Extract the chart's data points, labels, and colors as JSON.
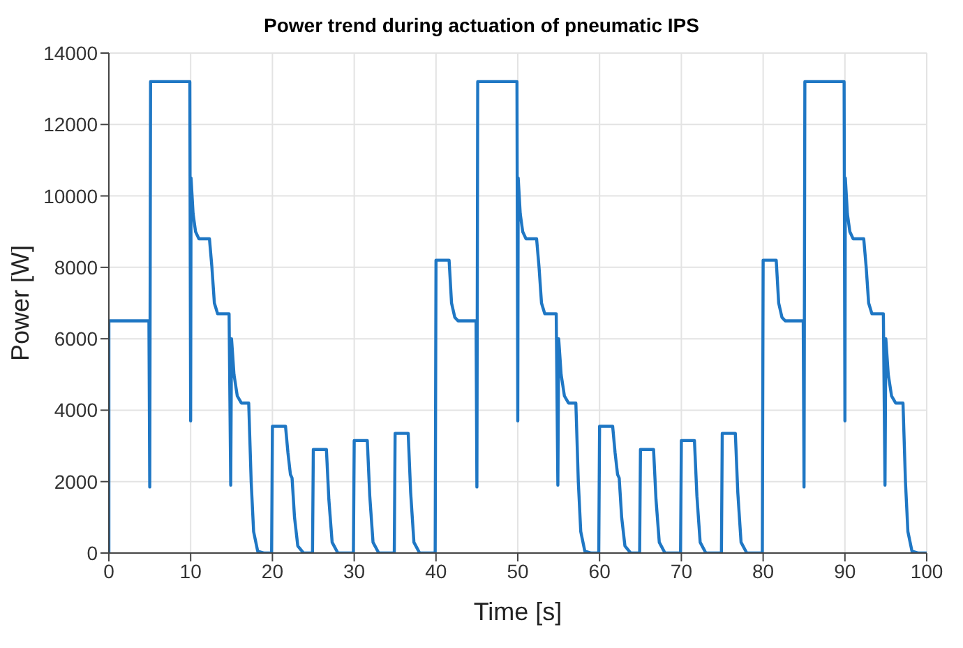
{
  "chart_data": {
    "type": "line",
    "title": "Power trend during actuation of pneumatic IPS",
    "xlabel": "Time [s]",
    "ylabel": "Power [W]",
    "xlim": [
      0,
      100
    ],
    "xticks": [
      0,
      10,
      20,
      30,
      40,
      50,
      60,
      70,
      80,
      90,
      100
    ],
    "ylim": [
      0,
      14000
    ],
    "yticks": [
      0,
      2000,
      4000,
      6000,
      8000,
      10000,
      12000,
      14000
    ],
    "grid": true,
    "marker": "none",
    "line_style": "solid",
    "series": [
      {
        "color": "#1f77c4",
        "x": [
          0,
          0,
          4.9,
          5,
          5.1,
          9.9,
          10,
          10.05,
          10.3,
          10.6,
          11,
          12.3,
          12.6,
          12.9,
          13.3,
          14.7,
          14.9,
          15,
          15.3,
          15.7,
          16.2,
          17.1,
          17.4,
          17.7,
          18.2,
          19,
          19.9,
          20,
          21.6,
          21.9,
          22.2,
          22.4,
          22.7,
          23.1,
          23.8,
          24.9,
          25,
          26.6,
          26.9,
          27.3,
          28,
          29.9,
          30,
          31.6,
          31.9,
          32.3,
          33,
          34.9,
          35,
          36.6,
          36.9,
          37.3,
          38,
          39.9,
          40,
          41.6,
          41.9,
          42.3,
          42.7,
          44.9,
          45,
          45.1,
          49.9,
          50,
          50.05,
          50.3,
          50.6,
          51,
          52.3,
          52.6,
          52.9,
          53.3,
          54.7,
          54.9,
          55,
          55.3,
          55.7,
          56.2,
          57.1,
          57.4,
          57.7,
          58.2,
          59,
          59.9,
          60,
          61.6,
          61.9,
          62.2,
          62.4,
          62.7,
          63.1,
          63.8,
          64.9,
          65,
          66.6,
          66.9,
          67.3,
          68,
          69.9,
          70,
          71.6,
          71.9,
          72.3,
          73,
          74.9,
          75,
          76.6,
          76.9,
          77.3,
          78,
          79.9,
          80,
          81.6,
          81.9,
          82.3,
          82.7,
          84.9,
          85,
          85.1,
          89.9,
          90,
          90.05,
          90.3,
          90.6,
          91,
          92.3,
          92.6,
          92.9,
          93.3,
          94.7,
          94.9,
          95,
          95.3,
          95.7,
          96.2,
          97.1,
          97.4,
          97.7,
          98.2,
          99,
          100
        ],
        "values": [
          0,
          6500,
          6500,
          1850,
          13200,
          13200,
          3700,
          10500,
          9500,
          9000,
          8800,
          8800,
          8000,
          7000,
          6700,
          6700,
          1900,
          6000,
          5000,
          4400,
          4200,
          4200,
          2000,
          600,
          50,
          0,
          0,
          3550,
          3550,
          2800,
          2200,
          2100,
          1000,
          200,
          0,
          0,
          2900,
          2900,
          1500,
          300,
          0,
          0,
          3150,
          3150,
          1600,
          300,
          0,
          0,
          3350,
          3350,
          1700,
          300,
          0,
          0,
          8200,
          8200,
          7000,
          6600,
          6500,
          6500,
          1850,
          13200,
          13200,
          3700,
          10500,
          9500,
          9000,
          8800,
          8800,
          8000,
          7000,
          6700,
          6700,
          1900,
          6000,
          5000,
          4400,
          4200,
          4200,
          2000,
          600,
          50,
          0,
          0,
          3550,
          3550,
          2800,
          2200,
          2100,
          1000,
          200,
          0,
          0,
          2900,
          2900,
          1500,
          300,
          0,
          0,
          3150,
          3150,
          1600,
          300,
          0,
          0,
          3350,
          3350,
          1700,
          300,
          0,
          0,
          8200,
          8200,
          7000,
          6600,
          6500,
          6500,
          1850,
          13200,
          13200,
          3700,
          10500,
          9500,
          9000,
          8800,
          8800,
          8000,
          7000,
          6700,
          6700,
          1900,
          6000,
          5000,
          4400,
          4200,
          4200,
          2000,
          600,
          50,
          0,
          0
        ]
      }
    ]
  }
}
